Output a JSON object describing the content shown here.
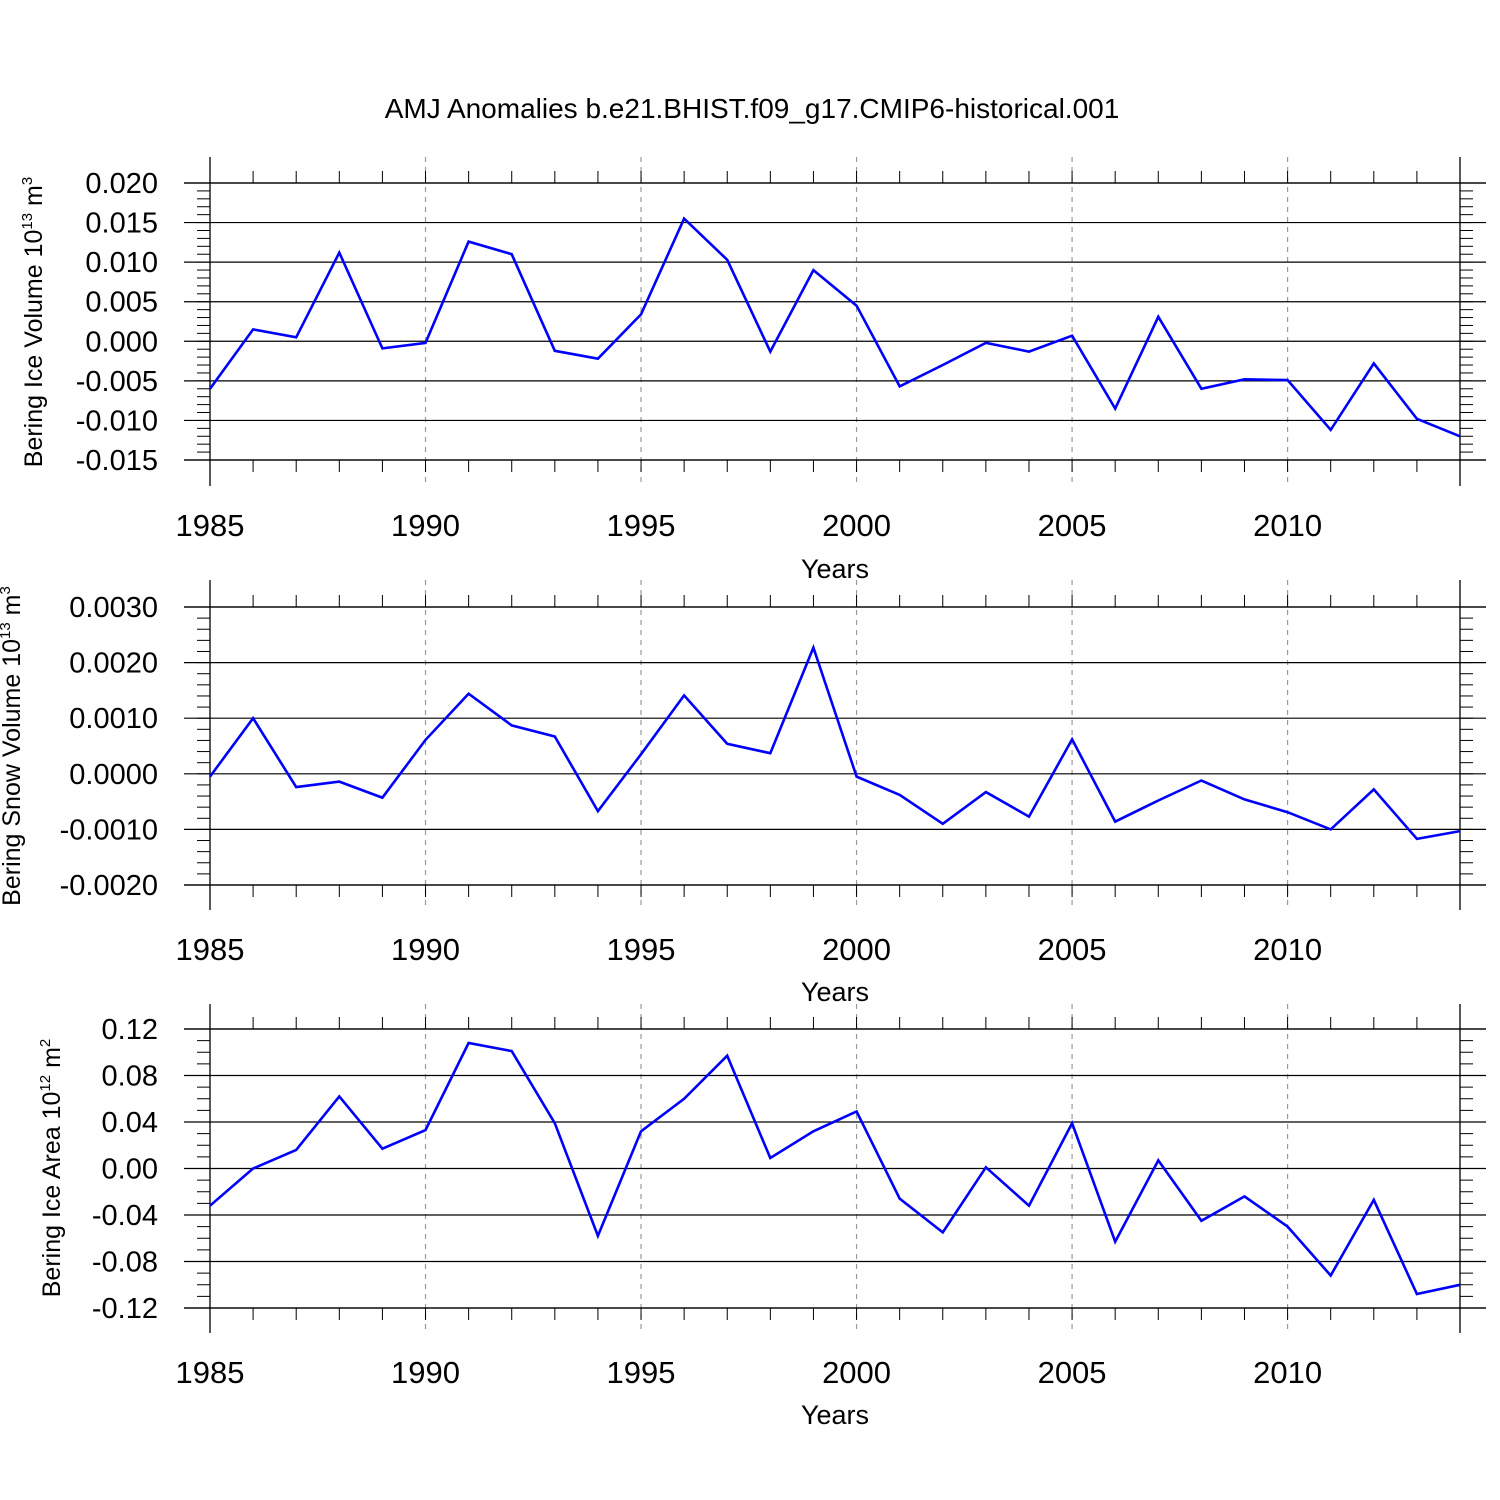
{
  "title": "AMJ Anomalies b.e21.BHIST.f09_g17.CMIP6-historical.001",
  "colors": {
    "line": "#0000ff",
    "axes": "#000000",
    "gridline": "#9a9a9a"
  },
  "chart_data": [
    {
      "type": "line",
      "xlabel": "Years",
      "ylabel": {
        "text": "Bering Ice Volume 10",
        "exp": "13",
        "unit": " m",
        "unit_exp": "3"
      },
      "xlim": [
        1985,
        2014
      ],
      "ylim": [
        -0.015,
        0.02
      ],
      "x_ticks": [
        "1985",
        "1990",
        "1995",
        "2000",
        "2005",
        "2010"
      ],
      "y_ticks": [
        "0.020",
        "0.015",
        "0.010",
        "0.005",
        "0.000",
        "-0.005",
        "-0.010",
        "-0.015"
      ],
      "y_tick_values": [
        0.02,
        0.015,
        0.01,
        0.005,
        0.0,
        -0.005,
        -0.01,
        -0.015
      ],
      "y_minor_step": 0.001,
      "grid": "dashed vertical at major x ticks",
      "x": [
        1985,
        1986,
        1987,
        1988,
        1989,
        1990,
        1991,
        1992,
        1993,
        1994,
        1995,
        1996,
        1997,
        1998,
        1999,
        2000,
        2001,
        2002,
        2003,
        2004,
        2005,
        2006,
        2007,
        2008,
        2009,
        2010,
        2011,
        2012,
        2013,
        2014
      ],
      "values": [
        -0.006,
        0.0015,
        0.0005,
        0.0112,
        -0.0009,
        -0.0002,
        0.0126,
        0.011,
        -0.0012,
        -0.0022,
        0.0034,
        0.0155,
        0.0103,
        -0.0013,
        0.009,
        0.0045,
        -0.0057,
        -0.003,
        -0.0002,
        -0.0013,
        0.0007,
        -0.0085,
        0.0031,
        -0.006,
        -0.0048,
        -0.0049,
        -0.0112,
        -0.0028,
        -0.0098,
        -0.012
      ]
    },
    {
      "type": "line",
      "xlabel": "Years",
      "ylabel": {
        "text": "Bering Snow Volume 10",
        "exp": "13",
        "unit": " m",
        "unit_exp": "3"
      },
      "xlim": [
        1985,
        2014
      ],
      "ylim": [
        -0.002,
        0.003
      ],
      "x_ticks": [
        "1985",
        "1990",
        "1995",
        "2000",
        "2005",
        "2010"
      ],
      "y_ticks": [
        "0.0030",
        "0.0020",
        "0.0010",
        "0.0000",
        "-0.0010",
        "-0.0020"
      ],
      "y_tick_values": [
        0.003,
        0.002,
        0.001,
        0.0,
        -0.001,
        -0.002
      ],
      "y_minor_step": 0.0002,
      "grid": "dashed vertical at major x ticks",
      "x": [
        1985,
        1986,
        1987,
        1988,
        1989,
        1990,
        1991,
        1992,
        1993,
        1994,
        1995,
        1996,
        1997,
        1998,
        1999,
        2000,
        2001,
        2002,
        2003,
        2004,
        2005,
        2006,
        2007,
        2008,
        2009,
        2010,
        2011,
        2012,
        2013,
        2014
      ],
      "values": [
        -5e-05,
        0.001,
        -0.00024,
        -0.00014,
        -0.00043,
        0.00061,
        0.00144,
        0.00087,
        0.00067,
        -0.00067,
        0.00035,
        0.00141,
        0.00054,
        0.00037,
        0.00227,
        -5e-05,
        -0.00038,
        -0.0009,
        -0.00033,
        -0.00077,
        0.00062,
        -0.00086,
        -0.00048,
        -0.00012,
        -0.00046,
        -0.00069,
        -0.001,
        -0.00028,
        -0.00117,
        -0.00103
      ]
    },
    {
      "type": "line",
      "xlabel": "Years",
      "ylabel": {
        "text": "Bering Ice Area 10",
        "exp": "12",
        "unit": " m",
        "unit_exp": "2"
      },
      "xlim": [
        1985,
        2014
      ],
      "ylim": [
        -0.12,
        0.12
      ],
      "x_ticks": [
        "1985",
        "1990",
        "1995",
        "2000",
        "2005",
        "2010"
      ],
      "y_ticks": [
        "0.12",
        "0.08",
        "0.04",
        "0.00",
        "-0.04",
        "-0.08",
        "-0.12"
      ],
      "y_tick_values": [
        0.12,
        0.08,
        0.04,
        0.0,
        -0.04,
        -0.08,
        -0.12
      ],
      "y_minor_step": 0.01,
      "grid": "dashed vertical at major x ticks",
      "x": [
        1985,
        1986,
        1987,
        1988,
        1989,
        1990,
        1991,
        1992,
        1993,
        1994,
        1995,
        1996,
        1997,
        1998,
        1999,
        2000,
        2001,
        2002,
        2003,
        2004,
        2005,
        2006,
        2007,
        2008,
        2009,
        2010,
        2011,
        2012,
        2013,
        2014
      ],
      "values": [
        -0.032,
        0.0,
        0.016,
        0.062,
        0.017,
        0.033,
        0.108,
        0.101,
        0.039,
        -0.058,
        0.032,
        0.06,
        0.097,
        0.009,
        0.032,
        0.049,
        -0.026,
        -0.055,
        0.001,
        -0.032,
        0.039,
        -0.063,
        0.007,
        -0.045,
        -0.024,
        -0.05,
        -0.092,
        -0.027,
        -0.108,
        -0.1
      ]
    }
  ]
}
